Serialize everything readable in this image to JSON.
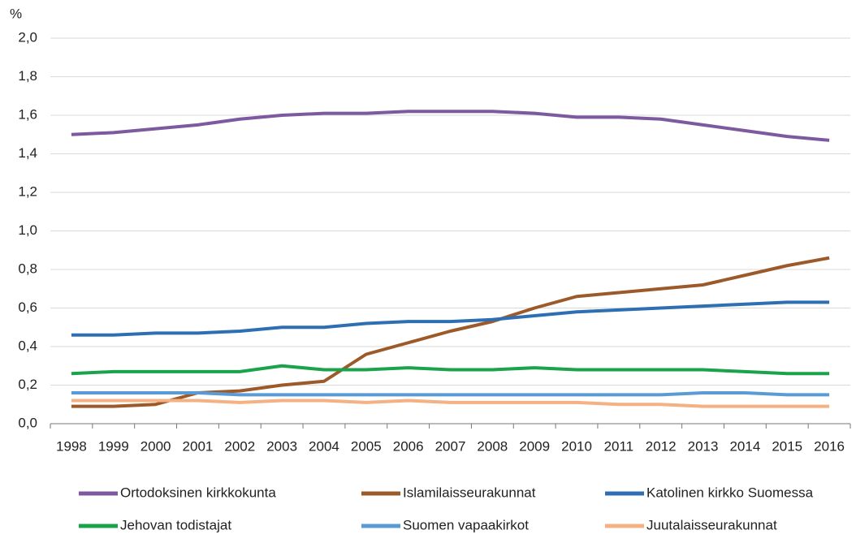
{
  "chart_data": {
    "type": "line",
    "y_unit": "%",
    "categories": [
      "1998",
      "1999",
      "2000",
      "2001",
      "2002",
      "2003",
      "2004",
      "2005",
      "2006",
      "2007",
      "2008",
      "2009",
      "2010",
      "2011",
      "2012",
      "2013",
      "2014",
      "2015",
      "2016"
    ],
    "series": [
      {
        "name": "Ortodoksinen kirkkokunta",
        "color": "#7d5aa0",
        "values": [
          1.5,
          1.51,
          1.53,
          1.55,
          1.58,
          1.6,
          1.61,
          1.61,
          1.62,
          1.62,
          1.62,
          1.61,
          1.59,
          1.59,
          1.58,
          1.55,
          1.52,
          1.49,
          1.47
        ]
      },
      {
        "name": "Islamilaisseurakunnat",
        "color": "#9c5a2a",
        "values": [
          0.09,
          0.09,
          0.1,
          0.16,
          0.17,
          0.2,
          0.22,
          0.36,
          0.42,
          0.48,
          0.53,
          0.6,
          0.66,
          0.68,
          0.7,
          0.72,
          0.77,
          0.82,
          0.86
        ]
      },
      {
        "name": "Katolinen kirkko Suomessa",
        "color": "#2e6fb3",
        "values": [
          0.46,
          0.46,
          0.47,
          0.47,
          0.48,
          0.5,
          0.5,
          0.52,
          0.53,
          0.53,
          0.54,
          0.56,
          0.58,
          0.59,
          0.6,
          0.61,
          0.62,
          0.63,
          0.63
        ]
      },
      {
        "name": "Jehovan todistajat",
        "color": "#1aa34a",
        "values": [
          0.26,
          0.27,
          0.27,
          0.27,
          0.27,
          0.3,
          0.28,
          0.28,
          0.29,
          0.28,
          0.28,
          0.29,
          0.28,
          0.28,
          0.28,
          0.28,
          0.27,
          0.26,
          0.26
        ]
      },
      {
        "name": "Suomen vapaakirkot",
        "color": "#5b9bd5",
        "values": [
          0.16,
          0.16,
          0.16,
          0.16,
          0.15,
          0.15,
          0.15,
          0.15,
          0.15,
          0.15,
          0.15,
          0.15,
          0.15,
          0.15,
          0.15,
          0.16,
          0.16,
          0.15,
          0.15
        ]
      },
      {
        "name": "Juutalaisseurakunnat",
        "color": "#f4b183",
        "values": [
          0.12,
          0.12,
          0.12,
          0.12,
          0.11,
          0.12,
          0.12,
          0.11,
          0.12,
          0.11,
          0.11,
          0.11,
          0.11,
          0.1,
          0.1,
          0.09,
          0.09,
          0.09,
          0.09
        ]
      }
    ],
    "ylim": [
      0,
      2
    ],
    "yticks": [
      {
        "value": 0,
        "label": "0,0"
      },
      {
        "value": 0.2,
        "label": "0,2"
      },
      {
        "value": 0.4,
        "label": "0,4"
      },
      {
        "value": 0.6,
        "label": "0,6"
      },
      {
        "value": 0.8,
        "label": "0,8"
      },
      {
        "value": 1,
        "label": "1,0"
      },
      {
        "value": 1.2,
        "label": "1,2"
      },
      {
        "value": 1.4,
        "label": "1,4"
      },
      {
        "value": 1.6,
        "label": "1,6"
      },
      {
        "value": 1.8,
        "label": "1,8"
      },
      {
        "value": 2,
        "label": "2,0"
      }
    ],
    "grid": true,
    "legend": "bottom"
  }
}
